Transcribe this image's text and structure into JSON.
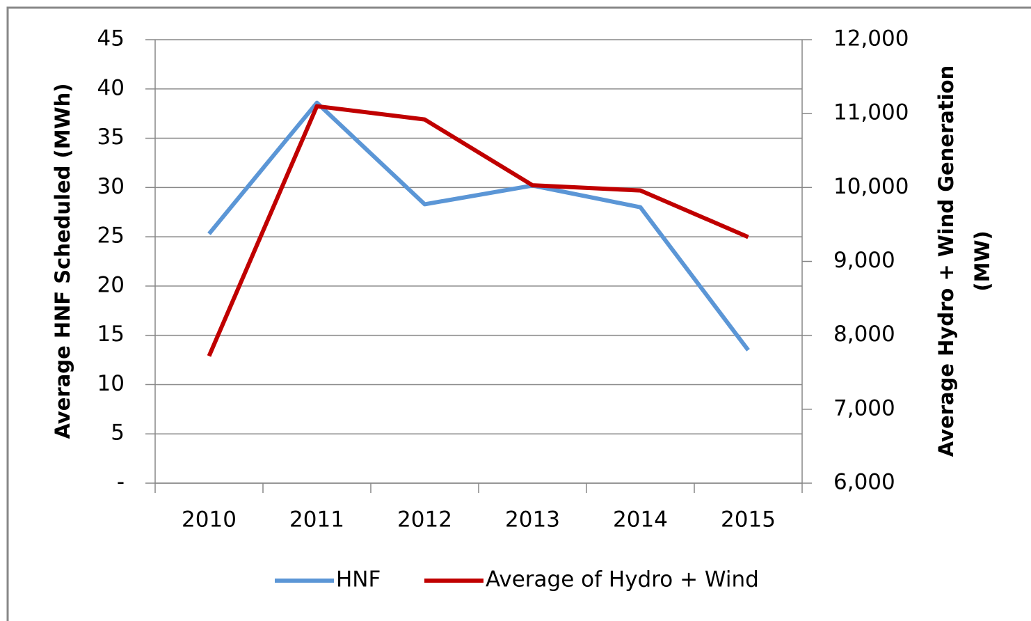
{
  "chart_data": {
    "type": "line",
    "ylabel": "Average HNF Scheduled (MWh)",
    "y2label": [
      "Average Hydro + Wind Generation",
      "(MW)"
    ],
    "categories": [
      "2010",
      "2011",
      "2012",
      "2013",
      "2014",
      "2015"
    ],
    "series": [
      {
        "name": "HNF",
        "color": "#5b96d6",
        "values": [
          25.3,
          38.6,
          28.3,
          30.2,
          28.0,
          13.5
        ]
      },
      {
        "name": "Average of Hydro + Wind",
        "color": "#c00000",
        "axis": "y2",
        "values": [
          7720,
          11100,
          10920,
          10030,
          9960,
          9330
        ]
      }
    ],
    "ylim": [
      0,
      45
    ],
    "yticks": [
      {
        "value": 0,
        "label": "-"
      },
      5,
      10,
      15,
      20,
      25,
      30,
      35,
      40,
      45
    ],
    "y2lim": [
      6000,
      12000
    ],
    "y2ticks": [
      {
        "value": 6000,
        "label": "6,000"
      },
      {
        "value": 7000,
        "label": "7,000"
      },
      {
        "value": 8000,
        "label": "8,000"
      },
      {
        "value": 9000,
        "label": "9,000"
      },
      {
        "value": 10000,
        "label": "10,000"
      },
      {
        "value": 11000,
        "label": "11,000"
      },
      {
        "value": 12000,
        "label": "12,000"
      }
    ],
    "grid": true,
    "legend": "bottom"
  }
}
